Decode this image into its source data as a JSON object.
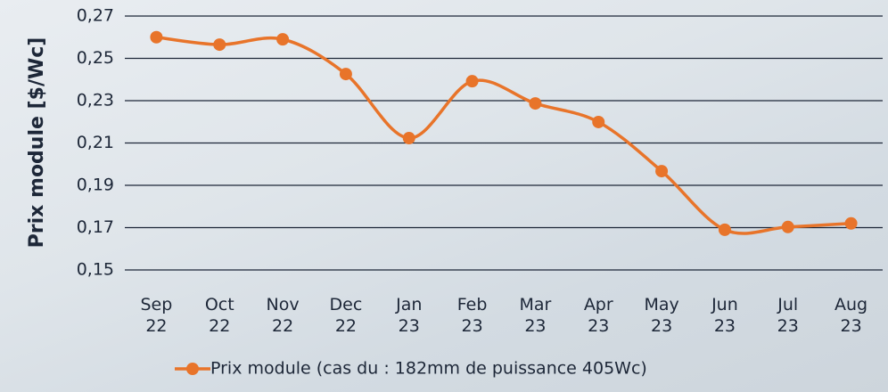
{
  "chart_data": {
    "type": "line",
    "y_label": "Prix module [$/Wc]",
    "categories": [
      "Sep 22",
      "Oct 22",
      "Nov 22",
      "Dec 22",
      "Jan 23",
      "Feb 23",
      "Mar 23",
      "Apr 23",
      "May 23",
      "Jun 23",
      "Jul 23",
      "Aug 23"
    ],
    "series": [
      {
        "name": "Prix module (cas du : 182mm de puissance 405Wc)",
        "color": "#e8742a",
        "values": [
          0.26,
          0.2565,
          0.259,
          0.2426,
          0.2123,
          0.2392,
          0.2287,
          0.2199,
          0.1967,
          0.169,
          0.1703,
          0.172
        ]
      }
    ],
    "ylim": [
      0.15,
      0.27
    ],
    "yticks": [
      {
        "value": 0.15,
        "label": "0,15"
      },
      {
        "value": 0.17,
        "label": "0,17"
      },
      {
        "value": 0.19,
        "label": "0,19"
      },
      {
        "value": 0.21,
        "label": "0,21"
      },
      {
        "value": 0.23,
        "label": "0,23"
      },
      {
        "value": 0.25,
        "label": "0,25"
      },
      {
        "value": 0.27,
        "label": "0,27"
      }
    ],
    "grid": true,
    "smooth": true,
    "legend": "bottom"
  }
}
